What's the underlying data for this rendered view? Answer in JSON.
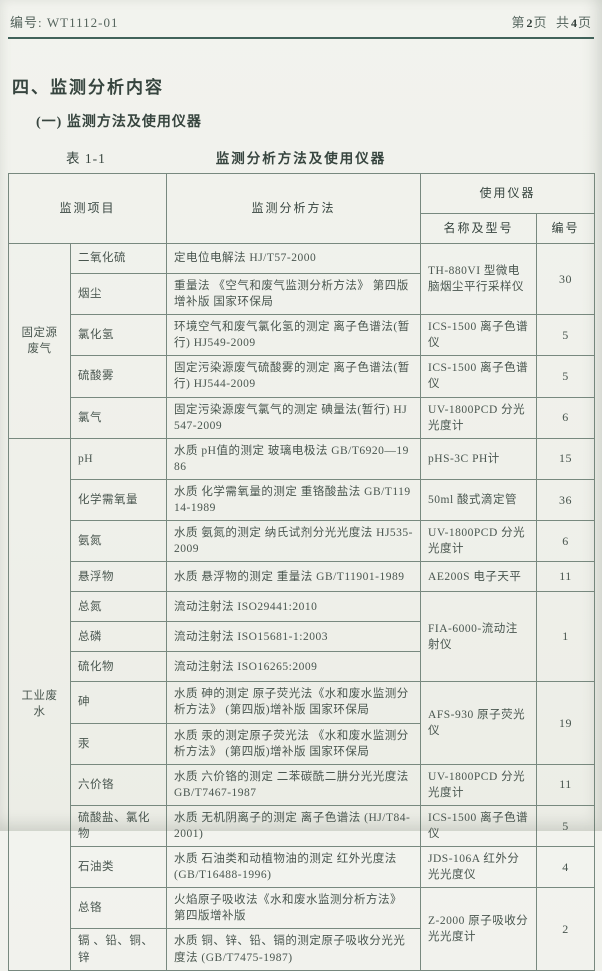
{
  "colors": {
    "paper": "#f0f1eb",
    "ink": "#49564f",
    "table_line": "#78897f",
    "header_rule": "#41635a"
  },
  "page_header": {
    "doc_number_label": "编号:",
    "doc_number": "WT1112-01",
    "page_prefix": "第",
    "page_number": "2",
    "page_unit": "页",
    "total_prefix": "共",
    "total_number": "4",
    "total_unit": "页"
  },
  "section": {
    "title": "四、监测分析内容",
    "subsection": "(一)  监测方法及使用仪器"
  },
  "table": {
    "caption_label": "表 1-1",
    "caption_title": "监测分析方法及使用仪器",
    "headers": {
      "project": "监测项目",
      "method": "监测分析方法",
      "instrument_group": "使用仪器",
      "instrument_name": "名称及型号",
      "instrument_no": "编号"
    },
    "rows": [
      {
        "group": {
          "label": "固定源废气",
          "span": 5
        },
        "item": "二氧化硫",
        "method": "定电位电解法 HJ/T57-2000",
        "instrument": {
          "label": "TH-880VI 型微电脑烟尘平行采样仪",
          "span": 2
        },
        "number": {
          "label": "30",
          "span": 2
        }
      },
      {
        "item": "烟尘",
        "method": "重量法 《空气和废气监测分析方法》 第四版增补版  国家环保局"
      },
      {
        "item": "氯化氢",
        "method": "环境空气和废气氯化氢的测定 离子色谱法(暂行) HJ549-2009",
        "instrument": "ICS-1500 离子色谱仪",
        "number": "5"
      },
      {
        "item": "硫酸雾",
        "method": "固定污染源废气硫酸雾的测定 离子色谱法(暂行) HJ544-2009",
        "instrument": "ICS-1500 离子色谱仪",
        "number": "5"
      },
      {
        "item": "氯气",
        "method": "固定污染源废气氯气的测定 碘量法(暂行) HJ547-2009",
        "instrument": "UV-1800PCD 分光光度计",
        "number": "6"
      },
      {
        "group": {
          "label": "工业废水",
          "span": 14
        },
        "item": "pH",
        "method": "水质 pH值的测定 玻璃电极法 GB/T6920—1986",
        "instrument": "pHS-3C PH计",
        "number": "15"
      },
      {
        "item": "化学需氧量",
        "method": "水质 化学需氧量的测定 重铬酸盐法 GB/T11914-1989",
        "instrument": "50ml 酸式滴定管",
        "number": "36"
      },
      {
        "item": "氨氮",
        "method": "水质 氨氮的测定 纳氏试剂分光光度法 HJ535-2009",
        "instrument": "UV-1800PCD 分光光度计",
        "number": "6"
      },
      {
        "item": "悬浮物",
        "method": "水质 悬浮物的测定 重量法 GB/T11901-1989",
        "instrument": "AE200S 电子天平",
        "number": "11"
      },
      {
        "item": "总氮",
        "method": "流动注射法 ISO29441:2010",
        "instrument": {
          "label": "FIA-6000-流动注射仪",
          "span": 3
        },
        "number": {
          "label": "1",
          "span": 3
        }
      },
      {
        "item": "总磷",
        "method": "流动注射法 ISO15681-1:2003"
      },
      {
        "item": "硫化物",
        "method": "流动注射法 ISO16265:2009"
      },
      {
        "item": "砷",
        "method": "水质 砷的测定 原子荧光法《水和废水监测分析方法》 (第四版)增补版 国家环保局",
        "instrument": {
          "label": "AFS-930 原子荧光仪",
          "span": 2
        },
        "number": {
          "label": "19",
          "span": 2
        }
      },
      {
        "item": "汞",
        "method": "水质 汞的测定原子荧光法 《水和废水监测分析方法》 (第四版)增补版 国家环保局"
      },
      {
        "item": "六价铬",
        "method": "水质 六价铬的测定 二苯碳酰二肼分光光度法 GB/T7467-1987",
        "instrument": "UV-1800PCD 分光光度计",
        "number": "11"
      },
      {
        "item": "硫酸盐、氯化物",
        "method": "水质 无机阴离子的测定 离子色谱法 (HJ/T84-2001)",
        "instrument": "ICS-1500 离子色谱仪",
        "number": "5"
      },
      {
        "item": "石油类",
        "method": "水质 石油类和动植物油的测定 红外光度法 (GB/T16488-1996)",
        "instrument": "JDS-106A 红外分光光度仪",
        "number": "4"
      },
      {
        "item": "总铬",
        "method": "火焰原子吸收法《水和废水监测分析方法》第四版增补版",
        "instrument": {
          "label": "Z-2000 原子吸收分光光度计",
          "span": 2
        },
        "number": {
          "label": "2",
          "span": 2
        }
      },
      {
        "item": "镉 、铅、铜、锌",
        "method": "水质 铜、锌、铅、镉的测定原子吸收分光光度法 (GB/T7475-1987)"
      }
    ]
  }
}
